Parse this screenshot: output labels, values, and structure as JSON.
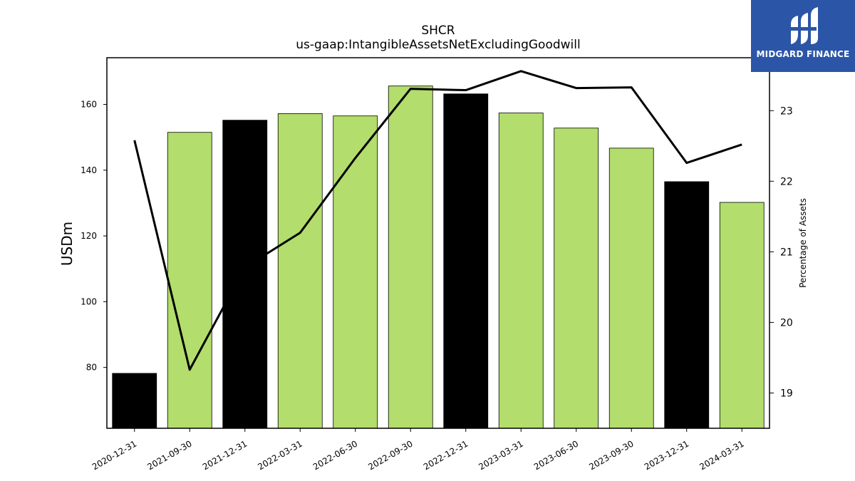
{
  "chart_data": {
    "type": "bar",
    "title": "SHCR",
    "subtitle": "us-gaap:IntangibleAssetsNetExcludingGoodwill",
    "ylabel": "USDm",
    "ylabel_right": "Percentage of Assets",
    "ylim": [
      61.5,
      174.2
    ],
    "ylim_right": [
      18.5,
      23.75
    ],
    "yticks": [
      80,
      100,
      120,
      140,
      160
    ],
    "yticks_right": [
      19,
      20,
      21,
      22,
      23
    ],
    "categories": [
      "2020-12-31",
      "2021-09-30",
      "2021-12-31",
      "2022-03-31",
      "2022-06-30",
      "2022-09-30",
      "2022-12-31",
      "2023-03-31",
      "2023-06-30",
      "2023-09-30",
      "2023-12-31",
      "2024-03-31"
    ],
    "series": [
      {
        "values": [
          78.2,
          151.5,
          155.2,
          157.2,
          156.5,
          165.6,
          163.2,
          157.4,
          152.8,
          146.7,
          136.5,
          130.2
        ],
        "highlight": [
          true,
          false,
          true,
          false,
          false,
          false,
          true,
          false,
          false,
          false,
          true,
          false
        ]
      },
      {
        "values": [
          22.58,
          19.33,
          20.78,
          21.27,
          22.33,
          23.31,
          23.29,
          23.56,
          23.32,
          23.33,
          22.26,
          22.52
        ]
      }
    ],
    "colors": {
      "bar": "#b3dd6c",
      "highlight_bar": "#000000",
      "line": "#000000"
    },
    "grid": false,
    "legend": "none"
  },
  "logo": {
    "text": "MIDGARD FINANCE",
    "bg": "#2b55a7"
  }
}
